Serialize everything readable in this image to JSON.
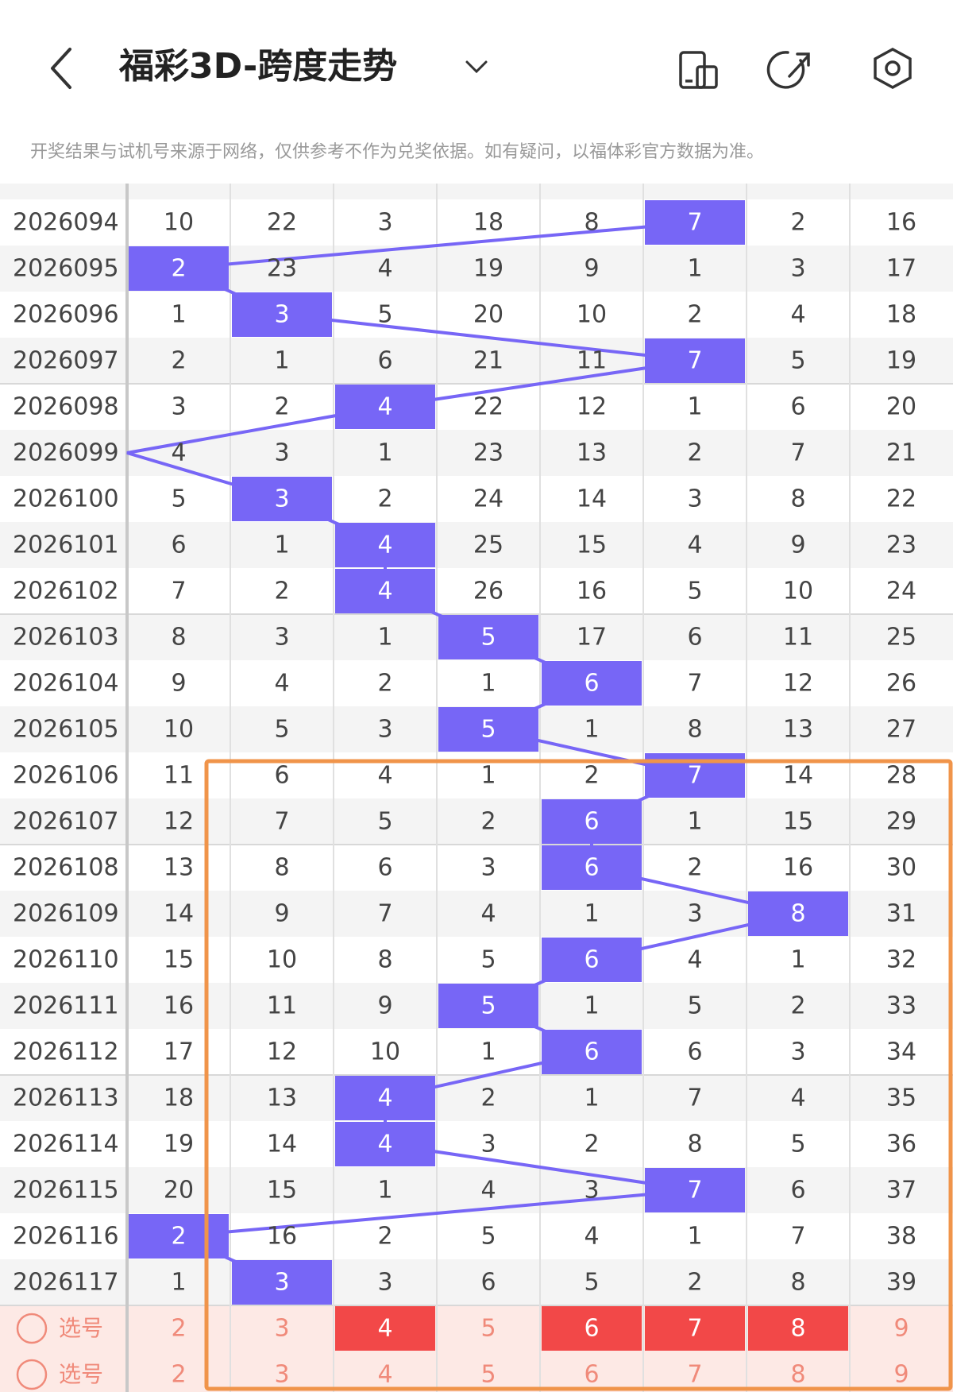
{
  "header": {
    "title": "福彩3D-跨度走势",
    "notice": "开奖结果与试机号来源于网络，仅供参考不作为兑奖依据。如有疑问，以福体彩官方数据为准。"
  },
  "table": {
    "rows": [
      {
        "period": "2026094",
        "cells": [
          10,
          22,
          3,
          18,
          8,
          7,
          2,
          16
        ],
        "hit": 5
      },
      {
        "period": "2026095",
        "cells": [
          2,
          23,
          4,
          19,
          9,
          1,
          3,
          17
        ],
        "hit": 0
      },
      {
        "period": "2026096",
        "cells": [
          1,
          3,
          5,
          20,
          10,
          2,
          4,
          18
        ],
        "hit": 1
      },
      {
        "period": "2026097",
        "cells": [
          2,
          1,
          6,
          21,
          11,
          7,
          5,
          19
        ],
        "hit": 5
      },
      {
        "period": "2026098",
        "cells": [
          3,
          2,
          4,
          22,
          12,
          1,
          6,
          20
        ],
        "hit": 2
      },
      {
        "period": "2026099",
        "cells": [
          4,
          3,
          1,
          23,
          13,
          2,
          7,
          21
        ],
        "hit": null
      },
      {
        "period": "2026100",
        "cells": [
          5,
          3,
          2,
          24,
          14,
          3,
          8,
          22
        ],
        "hit": 1
      },
      {
        "period": "2026101",
        "cells": [
          6,
          1,
          4,
          25,
          15,
          4,
          9,
          23
        ],
        "hit": 2
      },
      {
        "period": "2026102",
        "cells": [
          7,
          2,
          4,
          26,
          16,
          5,
          10,
          24
        ],
        "hit": 2
      },
      {
        "period": "2026103",
        "cells": [
          8,
          3,
          1,
          5,
          17,
          6,
          11,
          25
        ],
        "hit": 3
      },
      {
        "period": "2026104",
        "cells": [
          9,
          4,
          2,
          1,
          6,
          7,
          12,
          26
        ],
        "hit": 4
      },
      {
        "period": "2026105",
        "cells": [
          10,
          5,
          3,
          5,
          1,
          8,
          13,
          27
        ],
        "hit": 3
      },
      {
        "period": "2026106",
        "cells": [
          11,
          6,
          4,
          1,
          2,
          7,
          14,
          28
        ],
        "hit": 5
      },
      {
        "period": "2026107",
        "cells": [
          12,
          7,
          5,
          2,
          6,
          1,
          15,
          29
        ],
        "hit": 4
      },
      {
        "period": "2026108",
        "cells": [
          13,
          8,
          6,
          3,
          6,
          2,
          16,
          30
        ],
        "hit": 4
      },
      {
        "period": "2026109",
        "cells": [
          14,
          9,
          7,
          4,
          1,
          3,
          8,
          31
        ],
        "hit": 6
      },
      {
        "period": "2026110",
        "cells": [
          15,
          10,
          8,
          5,
          6,
          4,
          1,
          32
        ],
        "hit": 4
      },
      {
        "period": "2026111",
        "cells": [
          16,
          11,
          9,
          5,
          1,
          5,
          2,
          33
        ],
        "hit": 3
      },
      {
        "period": "2026112",
        "cells": [
          17,
          12,
          10,
          1,
          6,
          6,
          3,
          34
        ],
        "hit": 4
      },
      {
        "period": "2026113",
        "cells": [
          18,
          13,
          4,
          2,
          1,
          7,
          4,
          35
        ],
        "hit": 2
      },
      {
        "period": "2026114",
        "cells": [
          19,
          14,
          4,
          3,
          2,
          8,
          5,
          36
        ],
        "hit": 2
      },
      {
        "period": "2026115",
        "cells": [
          20,
          15,
          1,
          4,
          3,
          7,
          6,
          37
        ],
        "hit": 5
      },
      {
        "period": "2026116",
        "cells": [
          2,
          16,
          2,
          5,
          4,
          1,
          7,
          38
        ],
        "hit": 0
      },
      {
        "period": "2026117",
        "cells": [
          1,
          3,
          3,
          6,
          5,
          2,
          8,
          39
        ],
        "hit": 1
      }
    ],
    "select_rows": [
      {
        "label": "选号",
        "numbers": [
          2,
          3,
          4,
          5,
          6,
          7,
          8,
          9
        ],
        "selected": [
          2,
          4,
          5,
          6
        ]
      },
      {
        "label": "选号",
        "numbers": [
          2,
          3,
          4,
          5,
          6,
          7,
          8,
          9
        ],
        "selected": []
      }
    ]
  }
}
